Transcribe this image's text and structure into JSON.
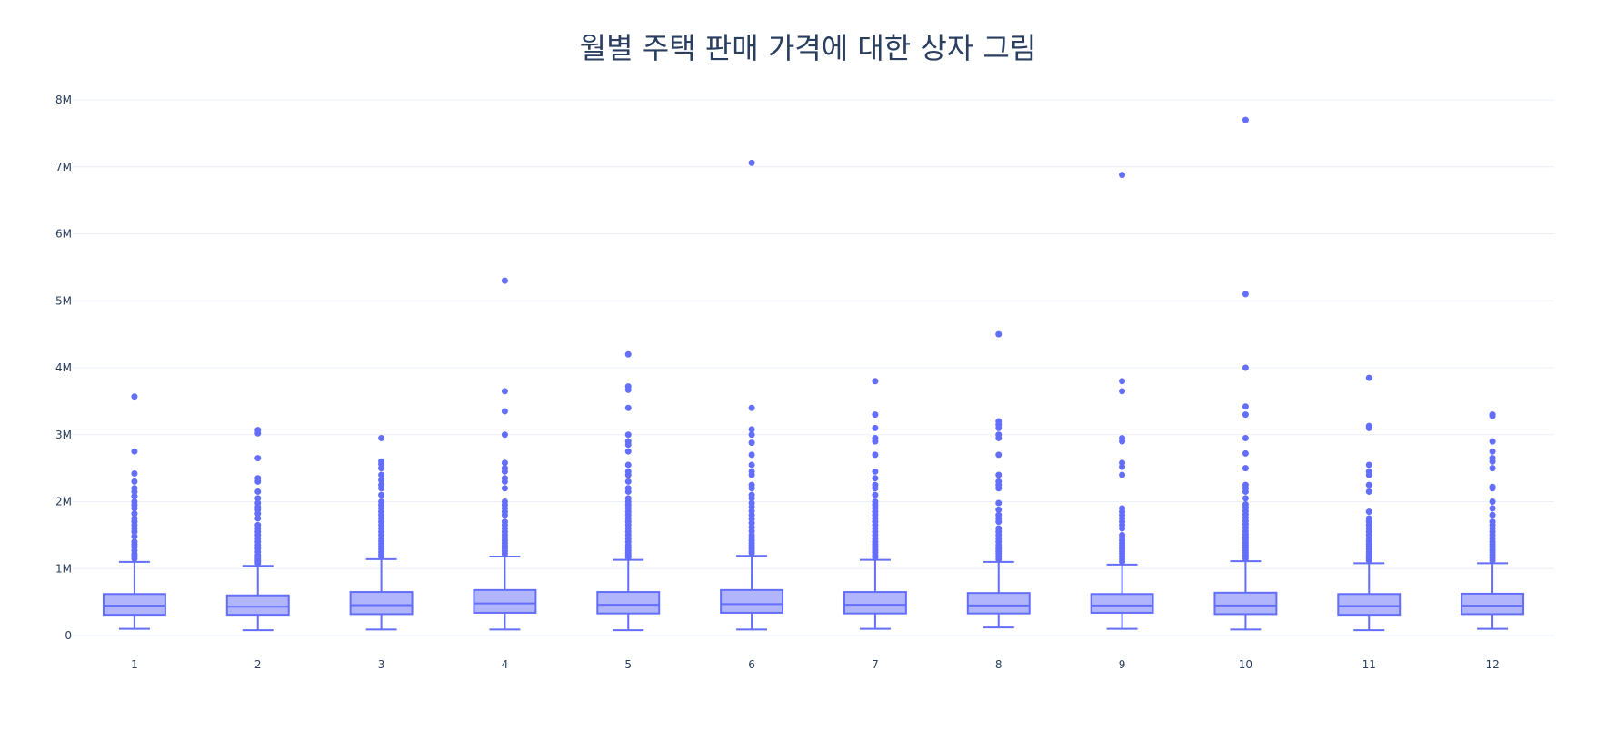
{
  "chart_data": {
    "type": "box",
    "title": "월별 주택 판매 가격에 대한 상자 그림",
    "xlabel": "",
    "ylabel": "",
    "categories": [
      "1",
      "2",
      "3",
      "4",
      "5",
      "6",
      "7",
      "8",
      "9",
      "10",
      "11",
      "12"
    ],
    "ylim": [
      0,
      8000000
    ],
    "yticks": [
      {
        "value": 0,
        "label": "0"
      },
      {
        "value": 1000000,
        "label": "1M"
      },
      {
        "value": 2000000,
        "label": "2M"
      },
      {
        "value": 3000000,
        "label": "3M"
      },
      {
        "value": 4000000,
        "label": "4M"
      },
      {
        "value": 5000000,
        "label": "5M"
      },
      {
        "value": 6000000,
        "label": "6M"
      },
      {
        "value": 7000000,
        "label": "7M"
      },
      {
        "value": 8000000,
        "label": "8M"
      }
    ],
    "grid": true,
    "legend": "none",
    "colors": {
      "box_line": "#636efa",
      "box_fill": "#b1b6fc",
      "grid": "#ebf0f8",
      "tick_text": "#2a3f5f"
    },
    "boxes": [
      {
        "month": "1",
        "low": 100000,
        "q1": 310000,
        "median": 445000,
        "q3": 620000,
        "high": 1100000,
        "outliers": [
          1150000,
          1190000,
          1220000,
          1270000,
          1320000,
          1360000,
          1400000,
          1480000,
          1550000,
          1600000,
          1650000,
          1700000,
          1750000,
          1820000,
          1900000,
          1950000,
          2000000,
          2080000,
          2150000,
          2200000,
          2300000,
          2420000,
          2750000,
          3570000
        ]
      },
      {
        "month": "2",
        "low": 80000,
        "q1": 310000,
        "median": 430000,
        "q3": 600000,
        "high": 1040000,
        "outliers": [
          1080000,
          1110000,
          1140000,
          1170000,
          1200000,
          1250000,
          1300000,
          1350000,
          1400000,
          1450000,
          1500000,
          1550000,
          1600000,
          1650000,
          1750000,
          1820000,
          1880000,
          1920000,
          1980000,
          2050000,
          2150000,
          2300000,
          2350000,
          2650000,
          3020000,
          3070000
        ]
      },
      {
        "month": "3",
        "low": 90000,
        "q1": 320000,
        "median": 455000,
        "q3": 650000,
        "high": 1140000,
        "outliers": [
          1180000,
          1210000,
          1250000,
          1290000,
          1330000,
          1370000,
          1410000,
          1450000,
          1500000,
          1550000,
          1600000,
          1650000,
          1700000,
          1750000,
          1800000,
          1850000,
          1900000,
          1950000,
          2000000,
          2100000,
          2200000,
          2250000,
          2320000,
          2400000,
          2500000,
          2560000,
          2600000,
          2950000
        ]
      },
      {
        "month": "4",
        "low": 90000,
        "q1": 340000,
        "median": 480000,
        "q3": 680000,
        "high": 1180000,
        "outliers": [
          1220000,
          1260000,
          1300000,
          1340000,
          1380000,
          1420000,
          1460000,
          1500000,
          1550000,
          1600000,
          1650000,
          1700000,
          1800000,
          1850000,
          1900000,
          1950000,
          2000000,
          2200000,
          2300000,
          2350000,
          2450000,
          2500000,
          2580000,
          3000000,
          3350000,
          3650000,
          5300000
        ]
      },
      {
        "month": "5",
        "low": 80000,
        "q1": 330000,
        "median": 460000,
        "q3": 650000,
        "high": 1130000,
        "outliers": [
          1170000,
          1200000,
          1230000,
          1270000,
          1310000,
          1350000,
          1400000,
          1450000,
          1500000,
          1550000,
          1600000,
          1650000,
          1700000,
          1750000,
          1800000,
          1850000,
          1900000,
          1950000,
          2000000,
          2050000,
          2150000,
          2200000,
          2300000,
          2400000,
          2450000,
          2550000,
          2750000,
          2850000,
          2900000,
          3000000,
          3400000,
          3670000,
          3720000,
          4200000
        ]
      },
      {
        "month": "6",
        "low": 90000,
        "q1": 340000,
        "median": 470000,
        "q3": 680000,
        "high": 1190000,
        "outliers": [
          1230000,
          1260000,
          1300000,
          1340000,
          1380000,
          1420000,
          1460000,
          1500000,
          1560000,
          1620000,
          1680000,
          1740000,
          1800000,
          1860000,
          1920000,
          1980000,
          2050000,
          2100000,
          2200000,
          2250000,
          2400000,
          2450000,
          2550000,
          2700000,
          2880000,
          3000000,
          3080000,
          3400000,
          7060000
        ]
      },
      {
        "month": "7",
        "low": 100000,
        "q1": 330000,
        "median": 460000,
        "q3": 650000,
        "high": 1130000,
        "outliers": [
          1170000,
          1200000,
          1240000,
          1280000,
          1320000,
          1360000,
          1400000,
          1450000,
          1500000,
          1550000,
          1600000,
          1650000,
          1700000,
          1750000,
          1800000,
          1850000,
          1900000,
          1950000,
          2000000,
          2100000,
          2200000,
          2250000,
          2350000,
          2450000,
          2700000,
          2900000,
          2950000,
          3100000,
          3300000,
          3800000
        ]
      },
      {
        "month": "8",
        "low": 120000,
        "q1": 330000,
        "median": 450000,
        "q3": 635000,
        "high": 1100000,
        "outliers": [
          1140000,
          1180000,
          1220000,
          1260000,
          1300000,
          1350000,
          1400000,
          1450000,
          1500000,
          1550000,
          1600000,
          1700000,
          1750000,
          1800000,
          1880000,
          1980000,
          2200000,
          2250000,
          2300000,
          2400000,
          2700000,
          2950000,
          3000000,
          3100000,
          3150000,
          3200000,
          4500000
        ]
      },
      {
        "month": "9",
        "low": 100000,
        "q1": 340000,
        "median": 450000,
        "q3": 620000,
        "high": 1060000,
        "outliers": [
          1100000,
          1140000,
          1180000,
          1220000,
          1260000,
          1300000,
          1340000,
          1380000,
          1420000,
          1460000,
          1500000,
          1600000,
          1650000,
          1700000,
          1750000,
          1800000,
          1850000,
          1900000,
          2400000,
          2520000,
          2580000,
          2900000,
          2950000,
          3650000,
          3800000,
          6880000
        ]
      },
      {
        "month": "10",
        "low": 90000,
        "q1": 320000,
        "median": 450000,
        "q3": 640000,
        "high": 1110000,
        "outliers": [
          1150000,
          1190000,
          1230000,
          1270000,
          1310000,
          1350000,
          1390000,
          1430000,
          1470000,
          1510000,
          1560000,
          1610000,
          1660000,
          1710000,
          1760000,
          1810000,
          1860000,
          1910000,
          1960000,
          2050000,
          2150000,
          2200000,
          2250000,
          2500000,
          2720000,
          2950000,
          3300000,
          3420000,
          4000000,
          5100000,
          7700000
        ]
      },
      {
        "month": "11",
        "low": 80000,
        "q1": 310000,
        "median": 440000,
        "q3": 620000,
        "high": 1080000,
        "outliers": [
          1120000,
          1150000,
          1180000,
          1210000,
          1250000,
          1290000,
          1330000,
          1370000,
          1410000,
          1450000,
          1500000,
          1550000,
          1600000,
          1650000,
          1700000,
          1750000,
          1850000,
          2150000,
          2250000,
          2400000,
          2450000,
          2550000,
          3100000,
          3130000,
          3850000
        ]
      },
      {
        "month": "12",
        "low": 100000,
        "q1": 320000,
        "median": 445000,
        "q3": 625000,
        "high": 1080000,
        "outliers": [
          1120000,
          1160000,
          1200000,
          1240000,
          1280000,
          1320000,
          1360000,
          1400000,
          1450000,
          1500000,
          1550000,
          1600000,
          1650000,
          1700000,
          1800000,
          1900000,
          2000000,
          2200000,
          2220000,
          2500000,
          2600000,
          2650000,
          2750000,
          2900000,
          3280000,
          3300000
        ]
      }
    ]
  }
}
